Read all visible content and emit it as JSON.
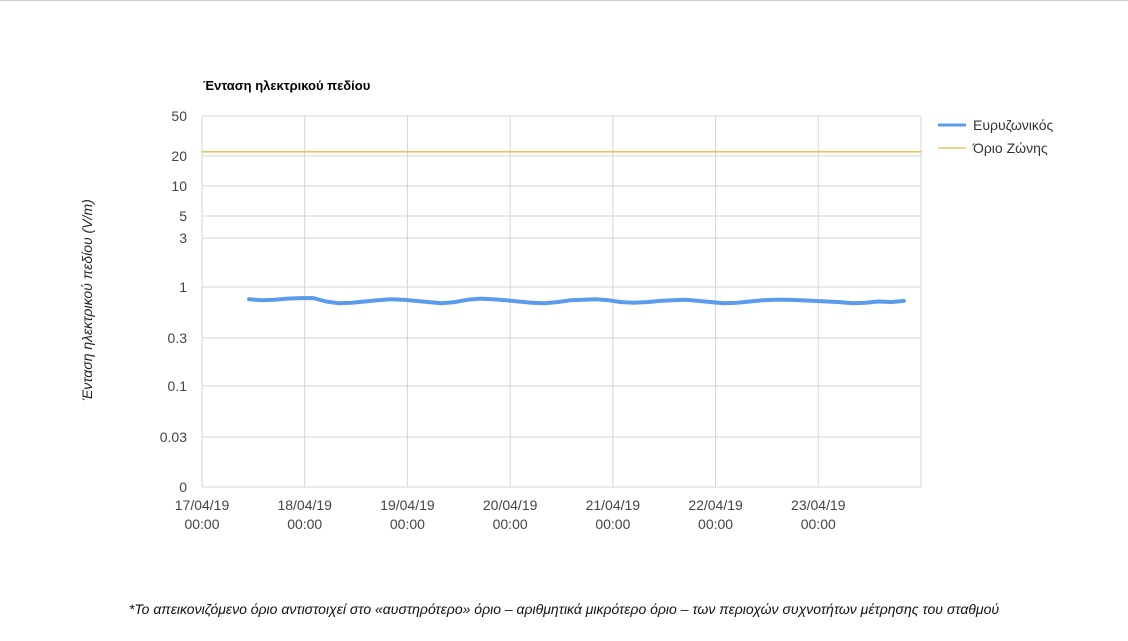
{
  "chart_data": {
    "type": "line",
    "title": "Ένταση ηλεκτρικού πεδίου",
    "ylabel": "Ένταση ηλεκτρικού πεδίου (V/m)",
    "xlabel": "",
    "y_scale": "log",
    "y_ticks": [
      "50",
      "20",
      "10",
      "5",
      "3",
      "1",
      "0.3",
      "0.1",
      "0.03",
      "0"
    ],
    "x_ticks": [
      {
        "date": "17/04/19",
        "time": "00:00"
      },
      {
        "date": "18/04/19",
        "time": "00:00"
      },
      {
        "date": "19/04/19",
        "time": "00:00"
      },
      {
        "date": "20/04/19",
        "time": "00:00"
      },
      {
        "date": "21/04/19",
        "time": "00:00"
      },
      {
        "date": "22/04/19",
        "time": "00:00"
      },
      {
        "date": "23/04/19",
        "time": "00:00"
      }
    ],
    "x_range": [
      "17/04/19 00:00",
      "24/04/19 00:00"
    ],
    "grid": true,
    "legend_position": "top-right",
    "series": [
      {
        "name": "Ευρυζωνικός",
        "color": "#5b9bec",
        "x": [
          "17/04/19 11:00",
          "17/04/19 14:00",
          "17/04/19 17:00",
          "17/04/19 20:00",
          "17/04/19 23:00",
          "18/04/19 02:00",
          "18/04/19 05:00",
          "18/04/19 08:00",
          "18/04/19 11:00",
          "18/04/19 14:00",
          "18/04/19 17:00",
          "18/04/19 20:00",
          "18/04/19 23:00",
          "19/04/19 02:00",
          "19/04/19 05:00",
          "19/04/19 08:00",
          "19/04/19 11:00",
          "19/04/19 14:00",
          "19/04/19 17:00",
          "19/04/19 20:00",
          "19/04/19 23:00",
          "20/04/19 02:00",
          "20/04/19 05:00",
          "20/04/19 08:00",
          "20/04/19 11:00",
          "20/04/19 14:00",
          "20/04/19 17:00",
          "20/04/19 20:00",
          "20/04/19 23:00",
          "21/04/19 02:00",
          "21/04/19 05:00",
          "21/04/19 08:00",
          "21/04/19 11:00",
          "21/04/19 14:00",
          "21/04/19 17:00",
          "21/04/19 20:00",
          "21/04/19 23:00",
          "22/04/19 02:00",
          "22/04/19 05:00",
          "22/04/19 08:00",
          "22/04/19 11:00",
          "22/04/19 14:00",
          "22/04/19 17:00",
          "22/04/19 20:00",
          "22/04/19 23:00",
          "23/04/19 02:00",
          "23/04/19 05:00",
          "23/04/19 08:00",
          "23/04/19 11:00",
          "23/04/19 14:00",
          "23/04/19 17:00",
          "23/04/19 20:00"
        ],
        "values": [
          0.75,
          0.73,
          0.74,
          0.76,
          0.77,
          0.77,
          0.71,
          0.68,
          0.69,
          0.71,
          0.73,
          0.75,
          0.74,
          0.72,
          0.7,
          0.68,
          0.7,
          0.74,
          0.76,
          0.75,
          0.73,
          0.71,
          0.69,
          0.68,
          0.7,
          0.73,
          0.74,
          0.75,
          0.73,
          0.7,
          0.69,
          0.7,
          0.72,
          0.73,
          0.74,
          0.72,
          0.7,
          0.68,
          0.69,
          0.71,
          0.73,
          0.74,
          0.74,
          0.73,
          0.72,
          0.71,
          0.7,
          0.68,
          0.69,
          0.71,
          0.7,
          0.72
        ]
      },
      {
        "name": "Όριο Ζώνης",
        "color": "#e8b84a",
        "x": [
          "17/04/19 00:00",
          "24/04/19 00:00"
        ],
        "values": [
          22,
          22
        ]
      }
    ]
  },
  "footnote": "*Το απεικονιζόμενο όριο αντιστοιχεί στο «αυστηρότερο» όριο – αριθμητικά μικρότερο όριο – των περιοχών συχνοτήτων μέτρησης του σταθμού"
}
